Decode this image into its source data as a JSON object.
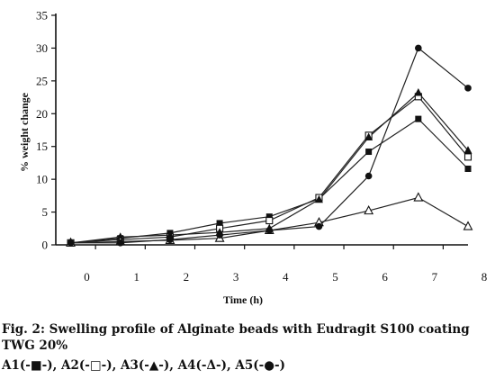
{
  "chart_data": {
    "type": "line",
    "xlabel": "Time (h)",
    "ylabel": "% weight change",
    "xlim": [
      -0.3,
      8
    ],
    "ylim": [
      0,
      35
    ],
    "x_ticks": [
      "0",
      "1",
      "2",
      "3",
      "4",
      "5",
      "6",
      "7",
      "8"
    ],
    "y_ticks": [
      "0",
      "5",
      "10",
      "15",
      "20",
      "25",
      "30",
      "35"
    ],
    "x": [
      0,
      1,
      2,
      3,
      4,
      5,
      6,
      7,
      8
    ],
    "series": [
      {
        "name": "A1",
        "marker": "square-filled",
        "values": [
          0.3,
          1.0,
          1.8,
          3.3,
          4.3,
          7.0,
          14.2,
          19.2,
          11.6
        ]
      },
      {
        "name": "A2",
        "marker": "square-open",
        "values": [
          0.3,
          0.8,
          1.2,
          2.5,
          3.7,
          7.2,
          16.7,
          22.6,
          13.4
        ]
      },
      {
        "name": "A3",
        "marker": "triangle-filled",
        "values": [
          0.3,
          1.2,
          1.5,
          1.9,
          2.5,
          6.9,
          16.4,
          23.2,
          14.4
        ]
      },
      {
        "name": "A4",
        "marker": "triangle-open",
        "values": [
          0.3,
          0.5,
          0.7,
          1.0,
          2.2,
          3.4,
          5.2,
          7.2,
          2.8
        ]
      },
      {
        "name": "A5",
        "marker": "circle-filled",
        "values": [
          0.3,
          0.3,
          0.8,
          1.5,
          2.2,
          2.8,
          10.5,
          30.0,
          23.9
        ]
      }
    ]
  },
  "caption": {
    "line1": "Fig. 2: Swelling profile of Alginate beads with Eudragit S100 coating",
    "line2": "TWG 20%",
    "line3": "A1(-■-), A2(-□-), A3(-▲-), A4(-Δ-), A5(-●-)"
  }
}
